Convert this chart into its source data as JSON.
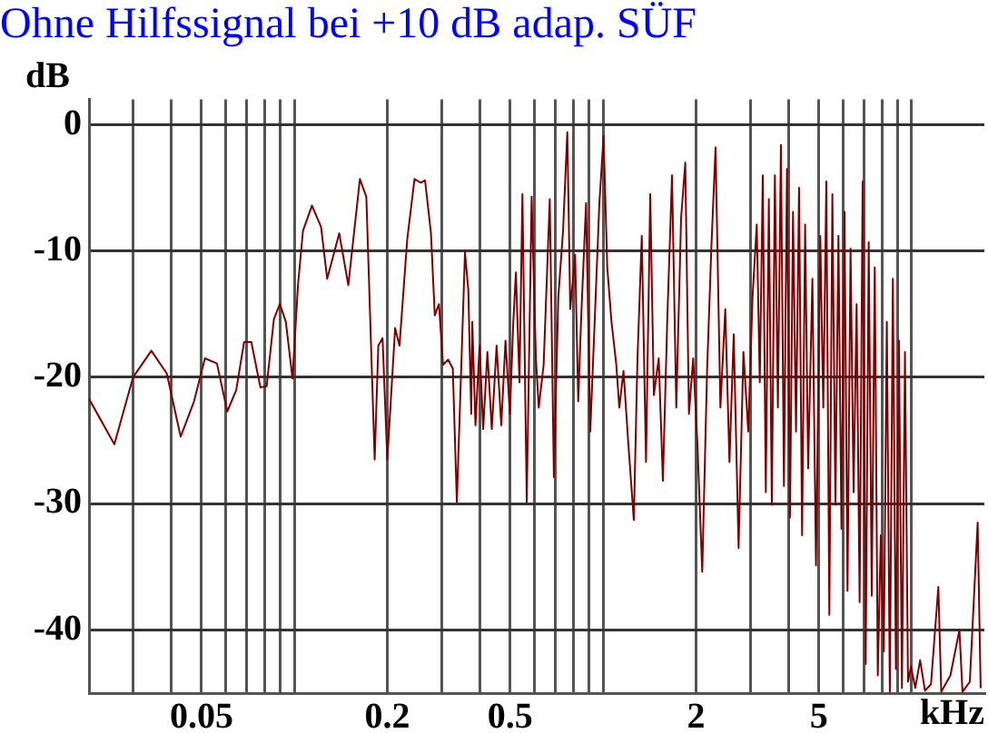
{
  "chart_data": {
    "type": "line",
    "title": "Ohne Hilfssignal bei +10 dB adap. SÜF",
    "xlabel": "kHz",
    "ylabel": "dB",
    "log": "x",
    "grid": true,
    "color": "#800000",
    "xlim": [
      0.0216,
      17.2
    ],
    "ylim": [
      -45,
      2
    ],
    "yticks": [
      0,
      -10,
      -20,
      -30,
      -40
    ],
    "xticks": [
      {
        "value": 0.03,
        "label": null
      },
      {
        "value": 0.04,
        "label": null
      },
      0.05,
      {
        "value": 0.06,
        "label": null
      },
      {
        "value": 0.07,
        "label": null
      },
      {
        "value": 0.08,
        "label": null
      },
      {
        "value": 0.09,
        "label": null
      },
      {
        "value": 0.1,
        "label": null
      },
      0.2,
      {
        "value": 0.3,
        "label": null
      },
      {
        "value": 0.4,
        "label": null
      },
      0.5,
      {
        "value": 0.6,
        "label": null
      },
      {
        "value": 0.7,
        "label": null
      },
      {
        "value": 0.8,
        "label": null
      },
      {
        "value": 0.9,
        "label": null
      },
      {
        "value": 1,
        "label": null
      },
      2,
      {
        "value": 3,
        "label": null
      },
      {
        "value": 4,
        "label": null
      },
      5,
      {
        "value": 6,
        "label": null
      },
      {
        "value": 7,
        "label": null
      },
      {
        "value": 8,
        "label": null
      },
      {
        "value": 9,
        "label": null
      },
      {
        "value": 10,
        "label": null
      }
    ],
    "x": [
      0.0216,
      0.0261,
      0.03,
      0.0344,
      0.0386,
      0.0428,
      0.0473,
      0.0513,
      0.0561,
      0.0606,
      0.0648,
      0.0687,
      0.0725,
      0.0776,
      0.0813,
      0.0858,
      0.0897,
      0.0938,
      0.0986,
      0.1027,
      0.1066,
      0.114,
      0.122,
      0.1277,
      0.1397,
      0.1495,
      0.163,
      0.171,
      0.182,
      0.187,
      0.193,
      0.2,
      0.212,
      0.219,
      0.232,
      0.245,
      0.257,
      0.265,
      0.277,
      0.285,
      0.294,
      0.303,
      0.315,
      0.326,
      0.336,
      0.357,
      0.366,
      0.374,
      0.377,
      0.386,
      0.398,
      0.409,
      0.422,
      0.436,
      0.452,
      0.468,
      0.483,
      0.499,
      0.512,
      0.522,
      0.536,
      0.548,
      0.566,
      0.587,
      0.606,
      0.619,
      0.642,
      0.672,
      0.693,
      0.716,
      0.742,
      0.766,
      0.783,
      0.812,
      0.831,
      0.85,
      0.881,
      0.909,
      0.943,
      0.973,
      1.004,
      1.032,
      1.065,
      1.104,
      1.129,
      1.165,
      1.208,
      1.258,
      1.293,
      1.335,
      1.378,
      1.422,
      1.461,
      1.515,
      1.563,
      1.614,
      1.673,
      1.727,
      1.79,
      1.847,
      1.898,
      1.959,
      2.022,
      2.096,
      2.173,
      2.243,
      2.315,
      2.4,
      2.489,
      2.568,
      2.651,
      2.749,
      2.85,
      2.955,
      3.05,
      3.148,
      3.22,
      3.293,
      3.368,
      3.445,
      3.523,
      3.604,
      3.686,
      3.77,
      3.856,
      3.944,
      4.034,
      4.126,
      4.22,
      4.316,
      4.415,
      4.516,
      4.618,
      4.768,
      4.898,
      5.056,
      5.172,
      5.29,
      5.41,
      5.534,
      5.661,
      5.79,
      5.922,
      6.058,
      6.196,
      6.338,
      6.483,
      6.631,
      6.782,
      6.937,
      7.096,
      7.258,
      7.423,
      7.593,
      7.766,
      7.944,
      8.122,
      8.308,
      8.497,
      8.691,
      8.889,
      9.093,
      9.3,
      9.512,
      9.729,
      9.951,
      10.27,
      10.65,
      11.04,
      11.55,
      12.2,
      12.47,
      13.35,
      14.28,
      14.61,
      15.43,
      16.36,
      16.73
    ],
    "values": [
      -21.7,
      -25.3,
      -20.0,
      -17.9,
      -19.7,
      -24.7,
      -21.9,
      -18.5,
      -18.9,
      -22.7,
      -21.0,
      -17.2,
      -17.2,
      -20.8,
      -20.7,
      -15.4,
      -14.2,
      -15.6,
      -20.1,
      -12.7,
      -8.4,
      -6.4,
      -8.1,
      -12.2,
      -8.6,
      -12.7,
      -4.3,
      -5.7,
      -26.5,
      -17.5,
      -16.9,
      -26.5,
      -16.1,
      -17.5,
      -9.1,
      -4.3,
      -4.6,
      -4.4,
      -8.6,
      -15.1,
      -14.2,
      -19.0,
      -18.6,
      -19.3,
      -29.9,
      -10.1,
      -13.1,
      -22.9,
      -15.6,
      -23.8,
      -17.5,
      -24.1,
      -18.0,
      -24.1,
      -17.5,
      -23.8,
      -17.1,
      -22.9,
      -15.6,
      -11.7,
      -20.4,
      -5.5,
      -29.9,
      -5.7,
      -18.5,
      -22.4,
      -19.0,
      -5.9,
      -27.9,
      -13.7,
      -8.4,
      -0.6,
      -14.6,
      -10.3,
      -21.9,
      -15.1,
      -6.2,
      -24.3,
      -14.6,
      -6.2,
      -0.9,
      -11.3,
      -15.6,
      -19.0,
      -22.4,
      -19.5,
      -25.3,
      -31.3,
      -18.5,
      -8.8,
      -26.7,
      -5.5,
      -21.4,
      -18.5,
      -28.2,
      -15.6,
      -4.0,
      -22.4,
      -7.4,
      -3.0,
      -22.9,
      -18.5,
      -25.3,
      -35.4,
      -19.5,
      -9.8,
      -1.8,
      -22.4,
      -14.6,
      -26.7,
      -16.6,
      -33.5,
      -18.0,
      -24.3,
      -13.7,
      -7.9,
      -20.4,
      -4.0,
      -29.1,
      -5.9,
      -30.1,
      -4.0,
      -22.4,
      -1.6,
      -28.6,
      -3.5,
      -31.1,
      -6.9,
      -24.3,
      -5.0,
      -32.5,
      -7.9,
      -27.2,
      -12.2,
      -34.9,
      -8.8,
      -22.4,
      -4.5,
      -38.8,
      -5.5,
      -30.1,
      -8.8,
      -32.0,
      -6.9,
      -36.9,
      -9.8,
      -29.1,
      -14.2,
      -37.8,
      -4.5,
      -42.7,
      -9.3,
      -37.3,
      -11.3,
      -43.6,
      -32.5,
      -41.7,
      -15.6,
      -44.9,
      -12.2,
      -43.1,
      -17.1,
      -44.6,
      -18.0,
      -44.1,
      -42.9,
      -44.6,
      -42.4,
      -44.8,
      -44.3,
      -36.6,
      -44.9,
      -43.6,
      -40.0,
      -44.9,
      -44.1,
      -31.5,
      -44.6
    ]
  }
}
